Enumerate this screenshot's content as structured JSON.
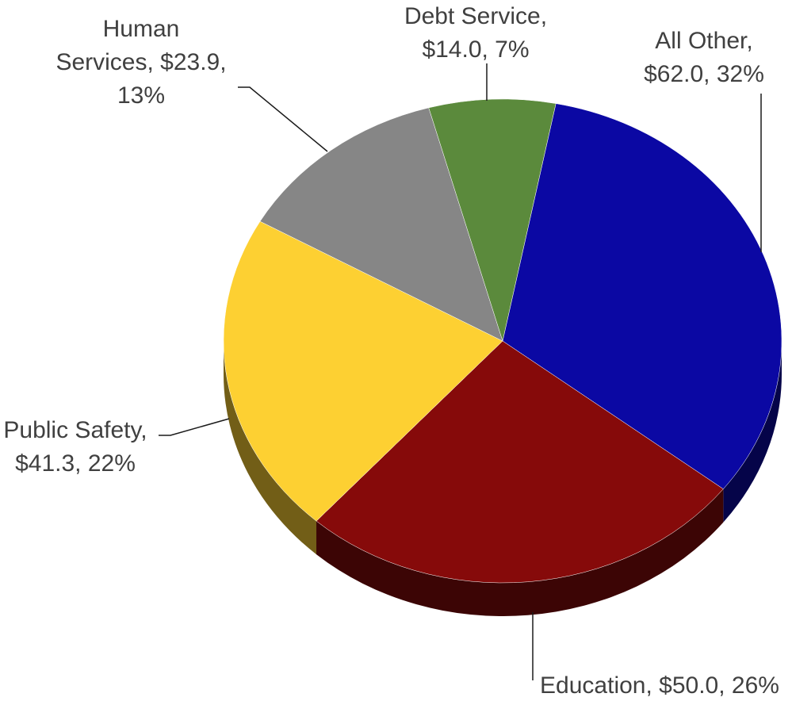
{
  "chart_data": {
    "type": "pie",
    "title": "",
    "slices": [
      {
        "name": "All Other",
        "value": 62.0,
        "percent": 32,
        "color": "#0B08A3",
        "label_lines": [
          "All Other,",
          "$62.0, 32%"
        ]
      },
      {
        "name": "Education",
        "value": 50.0,
        "percent": 26,
        "color": "#860A0A",
        "label_lines": [
          "Education, $50.0, 26%"
        ]
      },
      {
        "name": "Public Safety",
        "value": 41.3,
        "percent": 22,
        "color": "#FDD032",
        "label_lines": [
          "Public Safety,",
          "$41.3, 22%"
        ]
      },
      {
        "name": "Human Services",
        "value": 23.9,
        "percent": 13,
        "color": "#868686",
        "label_lines": [
          "Human",
          "Services, $23.9,",
          "13%"
        ]
      },
      {
        "name": "Debt Service",
        "value": 14.0,
        "percent": 7,
        "color": "#5B8A3C",
        "label_lines": [
          "Debt Service,",
          "$14.0, 7%"
        ]
      }
    ],
    "legend": "none",
    "style": "3d-pie"
  }
}
